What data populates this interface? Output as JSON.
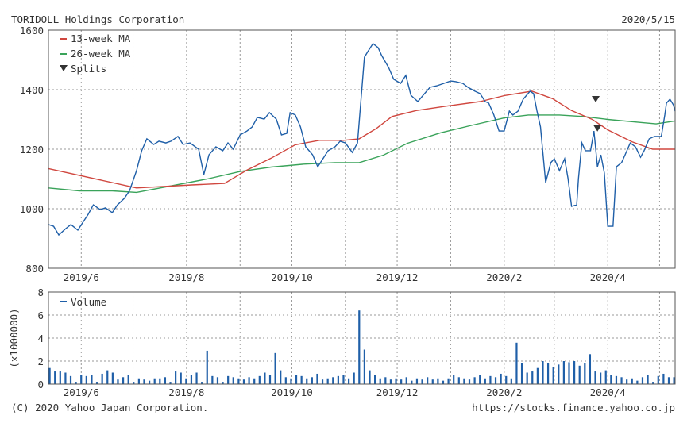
{
  "header": {
    "title": "TORIDOLL Holdings Corporation",
    "date": "2020/5/15"
  },
  "footer": {
    "copyright": "(C) 2020 Yahoo Japan Corporation.",
    "url": "https://stocks.finance.yahoo.co.jp"
  },
  "colors": {
    "price": "#1f5fa8",
    "ma13": "#d0473f",
    "ma26": "#3aa35a",
    "volume": "#1f5fa8",
    "splits": "#333333"
  },
  "chart_data": [
    {
      "type": "line",
      "title": "TORIDOLL Holdings Corporation",
      "x_unit": "days since 2019/5/15",
      "xlim": [
        -2,
        361
      ],
      "ylim": [
        800,
        1600
      ],
      "yticks": [
        800,
        1000,
        1200,
        1400,
        1600
      ],
      "xticks": [
        {
          "day": 17,
          "label": "2019/6"
        },
        {
          "day": 47,
          "label": ""
        },
        {
          "day": 78,
          "label": "2019/8"
        },
        {
          "day": 109,
          "label": ""
        },
        {
          "day": 139,
          "label": "2019/10"
        },
        {
          "day": 170,
          "label": ""
        },
        {
          "day": 200,
          "label": "2019/12"
        },
        {
          "day": 231,
          "label": ""
        },
        {
          "day": 262,
          "label": "2020/2"
        },
        {
          "day": 291,
          "label": ""
        },
        {
          "day": 322,
          "label": "2020/4"
        },
        {
          "day": 352,
          "label": ""
        }
      ],
      "grid": true,
      "legend": {
        "position": "top-left",
        "entries": [
          "13-week MA",
          "26-week MA",
          "Splits"
        ]
      },
      "series": [
        {
          "name": "Price",
          "points": [
            [
              -2,
              947
            ],
            [
              1,
              941
            ],
            [
              4,
              912
            ],
            [
              8,
              933
            ],
            [
              11,
              947
            ],
            [
              15,
              928
            ],
            [
              18,
              955
            ],
            [
              21,
              981
            ],
            [
              24,
              1013
            ],
            [
              28,
              997
            ],
            [
              31,
              1003
            ],
            [
              35,
              987
            ],
            [
              38,
              1013
            ],
            [
              42,
              1035
            ],
            [
              45,
              1061
            ],
            [
              49,
              1128
            ],
            [
              52,
              1195
            ],
            [
              55,
              1235
            ],
            [
              59,
              1216
            ],
            [
              62,
              1227
            ],
            [
              66,
              1221
            ],
            [
              69,
              1227
            ],
            [
              73,
              1243
            ],
            [
              76,
              1216
            ],
            [
              80,
              1221
            ],
            [
              85,
              1200
            ],
            [
              88,
              1115
            ],
            [
              91,
              1181
            ],
            [
              95,
              1208
            ],
            [
              99,
              1195
            ],
            [
              102,
              1221
            ],
            [
              105,
              1200
            ],
            [
              109,
              1248
            ],
            [
              113,
              1261
            ],
            [
              116,
              1275
            ],
            [
              119,
              1307
            ],
            [
              123,
              1301
            ],
            [
              126,
              1323
            ],
            [
              130,
              1301
            ],
            [
              133,
              1248
            ],
            [
              136,
              1253
            ],
            [
              138,
              1323
            ],
            [
              141,
              1315
            ],
            [
              144,
              1275
            ],
            [
              147,
              1208
            ],
            [
              151,
              1181
            ],
            [
              154,
              1141
            ],
            [
              157,
              1168
            ],
            [
              160,
              1195
            ],
            [
              164,
              1208
            ],
            [
              167,
              1227
            ],
            [
              170,
              1221
            ],
            [
              174,
              1189
            ],
            [
              177,
              1221
            ],
            [
              181,
              1509
            ],
            [
              183,
              1528
            ],
            [
              186,
              1555
            ],
            [
              189,
              1541
            ],
            [
              191,
              1515
            ],
            [
              195,
              1475
            ],
            [
              198,
              1435
            ],
            [
              202,
              1421
            ],
            [
              205,
              1448
            ],
            [
              208,
              1381
            ],
            [
              212,
              1360
            ],
            [
              215,
              1381
            ],
            [
              219,
              1408
            ],
            [
              223,
              1413
            ],
            [
              227,
              1421
            ],
            [
              231,
              1429
            ],
            [
              234,
              1427
            ],
            [
              238,
              1421
            ],
            [
              241,
              1408
            ],
            [
              245,
              1395
            ],
            [
              248,
              1387
            ],
            [
              251,
              1360
            ],
            [
              253,
              1355
            ],
            [
              256,
              1315
            ],
            [
              259,
              1261
            ],
            [
              262,
              1261
            ],
            [
              265,
              1328
            ],
            [
              267,
              1315
            ],
            [
              270,
              1328
            ],
            [
              273,
              1368
            ],
            [
              277,
              1395
            ],
            [
              279,
              1387
            ],
            [
              281,
              1328
            ],
            [
              283,
              1275
            ],
            [
              286,
              1088
            ],
            [
              289,
              1155
            ],
            [
              291,
              1168
            ],
            [
              294,
              1128
            ],
            [
              297,
              1168
            ],
            [
              299,
              1101
            ],
            [
              301,
              1008
            ],
            [
              304,
              1013
            ],
            [
              305,
              1101
            ],
            [
              307,
              1221
            ],
            [
              309,
              1195
            ],
            [
              312,
              1195
            ],
            [
              314,
              1261
            ],
            [
              316,
              1141
            ],
            [
              318,
              1181
            ],
            [
              320,
              1120
            ],
            [
              322,
              941
            ],
            [
              325,
              941
            ],
            [
              327,
              1141
            ],
            [
              330,
              1155
            ],
            [
              332,
              1181
            ],
            [
              335,
              1221
            ],
            [
              338,
              1208
            ],
            [
              341,
              1173
            ],
            [
              343,
              1195
            ],
            [
              346,
              1235
            ],
            [
              349,
              1243
            ],
            [
              353,
              1243
            ],
            [
              355,
              1315
            ],
            [
              356,
              1355
            ],
            [
              358,
              1368
            ],
            [
              360,
              1349
            ],
            [
              361,
              1328
            ]
          ]
        },
        {
          "name": "13-week MA",
          "points": [
            [
              -2,
              1135
            ],
            [
              49,
              1070
            ],
            [
              81,
              1080
            ],
            [
              100,
              1085
            ],
            [
              113,
              1130
            ],
            [
              127,
              1170
            ],
            [
              141,
              1215
            ],
            [
              155,
              1230
            ],
            [
              169,
              1230
            ],
            [
              178,
              1235
            ],
            [
              188,
              1270
            ],
            [
              197,
              1310
            ],
            [
              211,
              1330
            ],
            [
              229,
              1345
            ],
            [
              248,
              1360
            ],
            [
              262,
              1380
            ],
            [
              278,
              1395
            ],
            [
              290,
              1370
            ],
            [
              301,
              1330
            ],
            [
              313,
              1300
            ],
            [
              322,
              1265
            ],
            [
              336,
              1225
            ],
            [
              348,
              1200
            ],
            [
              361,
              1200
            ]
          ]
        },
        {
          "name": "26-week MA",
          "points": [
            [
              -2,
              1070
            ],
            [
              16,
              1060
            ],
            [
              35,
              1060
            ],
            [
              49,
              1055
            ],
            [
              72,
              1080
            ],
            [
              90,
              1100
            ],
            [
              109,
              1125
            ],
            [
              127,
              1140
            ],
            [
              146,
              1150
            ],
            [
              164,
              1155
            ],
            [
              178,
              1155
            ],
            [
              192,
              1180
            ],
            [
              206,
              1220
            ],
            [
              225,
              1255
            ],
            [
              243,
              1280
            ],
            [
              262,
              1305
            ],
            [
              276,
              1315
            ],
            [
              294,
              1315
            ],
            [
              308,
              1310
            ],
            [
              322,
              1300
            ],
            [
              341,
              1290
            ],
            [
              350,
              1285
            ],
            [
              361,
              1295
            ]
          ]
        },
        {
          "name": "Splits",
          "points": [
            [
              315,
              1368
            ],
            [
              316,
              1270
            ]
          ]
        }
      ]
    },
    {
      "type": "bar",
      "title": "Volume",
      "ylabel": "(x1000000)",
      "ylim": [
        0,
        8
      ],
      "yticks": [
        0,
        2,
        4,
        6,
        8
      ],
      "xlim": [
        -2,
        361
      ],
      "grid": true,
      "legend": {
        "position": "top-left",
        "entries": [
          "Volume"
        ]
      },
      "values": [
        1.4,
        1.1,
        1.1,
        1.0,
        0.7,
        0.2,
        0.8,
        0.7,
        0.8,
        0.2,
        0.9,
        1.2,
        1.0,
        0.4,
        0.6,
        0.8,
        0.2,
        0.5,
        0.4,
        0.3,
        0.5,
        0.5,
        0.6,
        0.2,
        1.1,
        1.0,
        0.5,
        0.8,
        1.0,
        0.2,
        2.9,
        0.7,
        0.6,
        0.2,
        0.7,
        0.6,
        0.5,
        0.4,
        0.6,
        0.5,
        0.7,
        1.0,
        0.8,
        2.7,
        1.2,
        0.6,
        0.5,
        0.8,
        0.7,
        0.5,
        0.6,
        0.9,
        0.4,
        0.5,
        0.6,
        0.7,
        0.8,
        0.5,
        1.0,
        6.4,
        3.0,
        1.2,
        0.8,
        0.5,
        0.6,
        0.4,
        0.5,
        0.4,
        0.6,
        0.3,
        0.5,
        0.4,
        0.6,
        0.4,
        0.5,
        0.3,
        0.5,
        0.8,
        0.6,
        0.5,
        0.4,
        0.6,
        0.8,
        0.5,
        0.7,
        0.6,
        0.9,
        0.7,
        0.5,
        3.6,
        1.8,
        1.0,
        1.1,
        1.4,
        2.0,
        1.8,
        1.5,
        1.7,
        2.0,
        1.9,
        2.0,
        1.6,
        1.8,
        2.6,
        1.1,
        1.0,
        1.2,
        0.8,
        0.7,
        0.6,
        0.4,
        0.5,
        0.3,
        0.6,
        0.8,
        0.2,
        0.7,
        0.9,
        0.6,
        0.6
      ]
    }
  ]
}
